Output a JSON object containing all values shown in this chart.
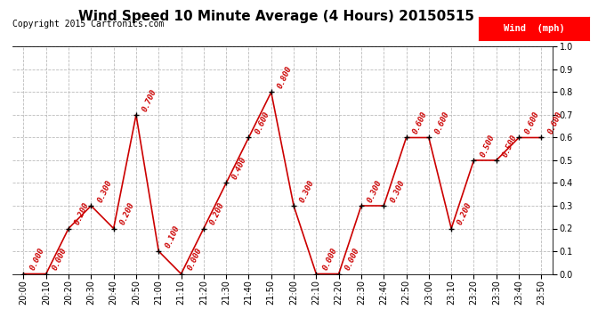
{
  "title": "Wind Speed 10 Minute Average (4 Hours) 20150515",
  "copyright": "Copyright 2015 Cartronics.com",
  "legend_label": "Wind  (mph)",
  "times": [
    "20:00",
    "20:10",
    "20:20",
    "20:30",
    "20:40",
    "20:50",
    "21:00",
    "21:10",
    "21:20",
    "21:30",
    "21:40",
    "21:50",
    "22:00",
    "22:10",
    "22:20",
    "22:30",
    "22:40",
    "22:50",
    "23:00",
    "23:10",
    "23:20",
    "23:30",
    "23:40",
    "23:50"
  ],
  "values": [
    0.0,
    0.0,
    0.2,
    0.3,
    0.2,
    0.7,
    0.1,
    0.0,
    0.2,
    0.4,
    0.6,
    0.8,
    0.3,
    0.0,
    0.0,
    0.3,
    0.3,
    0.6,
    0.6,
    0.2,
    0.5,
    0.5,
    0.6,
    0.6
  ],
  "line_color": "#cc0000",
  "marker_color": "#000000",
  "label_color": "#cc0000",
  "ylim": [
    0.0,
    1.0
  ],
  "yticks": [
    0.0,
    0.1,
    0.2,
    0.3,
    0.4,
    0.5,
    0.6,
    0.7,
    0.8,
    0.9,
    1.0
  ],
  "grid_color": "#bbbbbb",
  "bg_color": "#ffffff",
  "title_fontsize": 11,
  "label_fontsize": 6.5,
  "axis_fontsize": 7,
  "copyright_fontsize": 7
}
